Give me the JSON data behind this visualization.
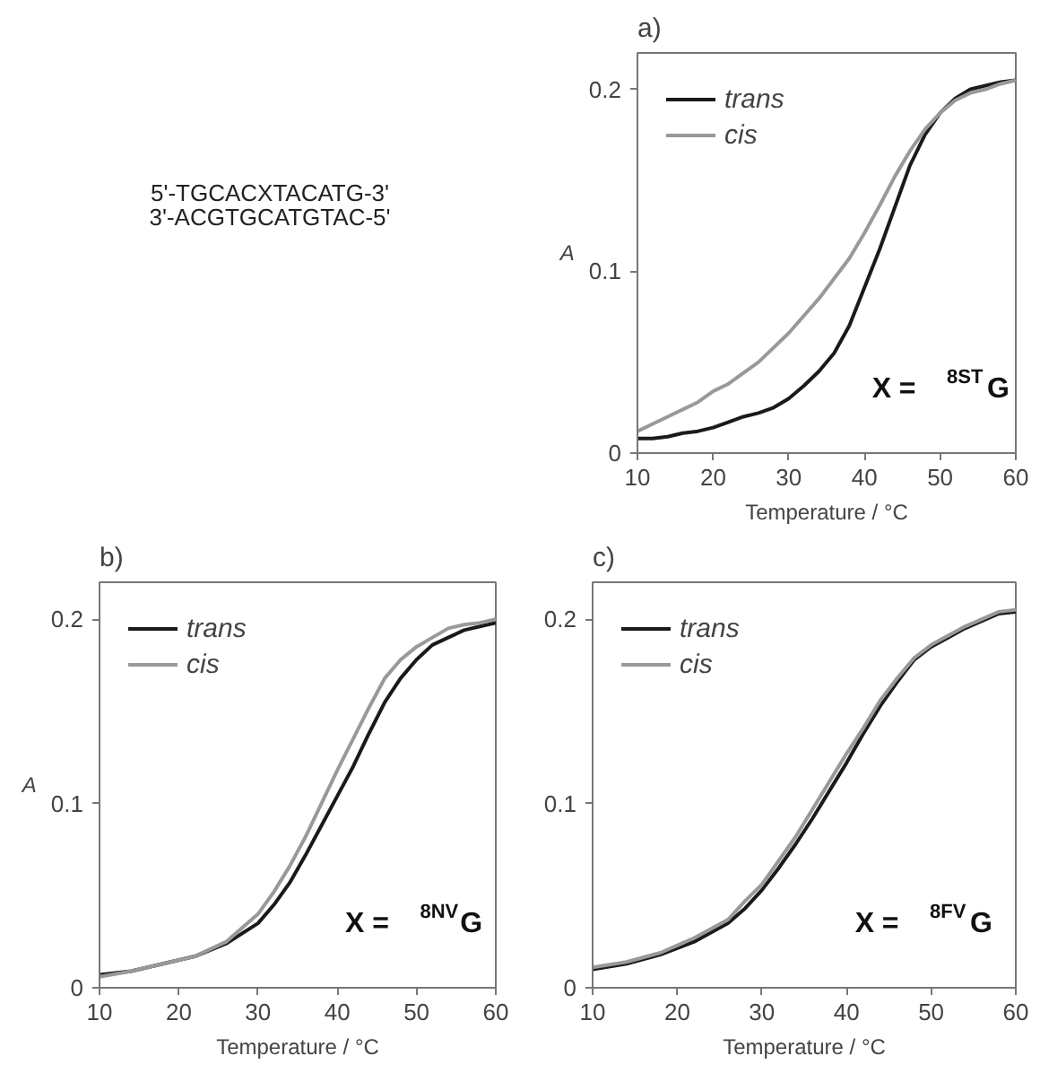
{
  "chart_data": [
    {
      "type": "other",
      "annotations": [
        "5'-TGCACXTACATG-3'",
        "3'-ACGTGCATGTAC-5'"
      ]
    },
    {
      "type": "line",
      "title": "a)",
      "xlabel": "Temperature / °C",
      "ylabel": "A",
      "annotations": [
        "X = $^{8ST}$G"
      ],
      "xlim": [
        10,
        60
      ],
      "ylim": [
        0,
        0.22
      ],
      "xticks": [
        10,
        20,
        30,
        40,
        50,
        60
      ],
      "yticks": [
        0,
        0.1,
        0.2
      ],
      "grid": false,
      "legend": "top left",
      "line_style": "solid",
      "series": [
        {
          "name": "trans",
          "color": "#1a1a1a",
          "x": [
            10,
            12,
            14,
            16,
            18,
            20,
            22,
            24,
            26,
            28,
            30,
            32,
            34,
            36,
            38,
            40,
            42,
            44,
            46,
            48,
            50,
            52,
            54,
            56,
            58,
            60
          ],
          "values": [
            0.008,
            0.008,
            0.009,
            0.011,
            0.012,
            0.014,
            0.017,
            0.02,
            0.022,
            0.025,
            0.03,
            0.037,
            0.045,
            0.055,
            0.07,
            0.091,
            0.112,
            0.135,
            0.158,
            0.175,
            0.187,
            0.195,
            0.2,
            0.202,
            0.204,
            0.205
          ]
        },
        {
          "name": "cis",
          "color": "#999999",
          "x": [
            10,
            14,
            18,
            20,
            22,
            26,
            30,
            34,
            38,
            40,
            42,
            44,
            46,
            48,
            50,
            52,
            54,
            56,
            58,
            60
          ],
          "values": [
            0.012,
            0.02,
            0.028,
            0.034,
            0.038,
            0.05,
            0.066,
            0.085,
            0.107,
            0.121,
            0.136,
            0.152,
            0.166,
            0.178,
            0.187,
            0.194,
            0.198,
            0.2,
            0.203,
            0.205
          ]
        }
      ]
    },
    {
      "type": "line",
      "title": "b)",
      "xlabel": "Temperature / °C",
      "ylabel": "A",
      "annotations": [
        "X = $^{8NV}$G"
      ],
      "xlim": [
        10,
        60
      ],
      "ylim": [
        0,
        0.22
      ],
      "xticks": [
        10,
        20,
        30,
        40,
        50,
        60
      ],
      "yticks": [
        0,
        0.1,
        0.2
      ],
      "grid": false,
      "legend": "top left",
      "line_style": "solid",
      "series": [
        {
          "name": "trans",
          "color": "#1a1a1a",
          "x": [
            10,
            14,
            18,
            22,
            26,
            30,
            32,
            34,
            36,
            38,
            40,
            42,
            44,
            46,
            48,
            50,
            52,
            54,
            56,
            58,
            60
          ],
          "values": [
            0.007,
            0.009,
            0.013,
            0.017,
            0.024,
            0.035,
            0.045,
            0.057,
            0.072,
            0.088,
            0.104,
            0.12,
            0.138,
            0.155,
            0.168,
            0.178,
            0.186,
            0.19,
            0.194,
            0.196,
            0.198
          ]
        },
        {
          "name": "cis",
          "color": "#999999",
          "x": [
            10,
            14,
            18,
            22,
            26,
            30,
            32,
            34,
            36,
            38,
            40,
            42,
            44,
            46,
            48,
            50,
            52,
            54,
            56,
            58,
            60
          ],
          "values": [
            0.006,
            0.009,
            0.013,
            0.017,
            0.025,
            0.04,
            0.052,
            0.066,
            0.082,
            0.1,
            0.118,
            0.135,
            0.152,
            0.168,
            0.178,
            0.185,
            0.19,
            0.195,
            0.197,
            0.198,
            0.2
          ]
        }
      ]
    },
    {
      "type": "line",
      "title": "c)",
      "xlabel": "Temperature / °C",
      "annotations": [
        "X = $^{8FV}$G"
      ],
      "xlim": [
        10,
        60
      ],
      "ylim": [
        0,
        0.22
      ],
      "xticks": [
        10,
        20,
        30,
        40,
        50,
        60
      ],
      "yticks": [
        0,
        0.1,
        0.2
      ],
      "grid": false,
      "legend": "top left",
      "line_style": "solid",
      "series": [
        {
          "name": "trans",
          "color": "#1a1a1a",
          "x": [
            10,
            14,
            18,
            22,
            26,
            28,
            30,
            32,
            34,
            36,
            38,
            40,
            42,
            44,
            46,
            48,
            50,
            52,
            54,
            56,
            58,
            60
          ],
          "values": [
            0.01,
            0.013,
            0.018,
            0.025,
            0.035,
            0.043,
            0.053,
            0.065,
            0.078,
            0.092,
            0.107,
            0.122,
            0.138,
            0.153,
            0.166,
            0.178,
            0.185,
            0.19,
            0.195,
            0.199,
            0.203,
            0.204
          ]
        },
        {
          "name": "cis",
          "color": "#999999",
          "x": [
            10,
            14,
            18,
            22,
            26,
            28,
            30,
            32,
            34,
            36,
            38,
            40,
            42,
            44,
            46,
            48,
            50,
            52,
            54,
            56,
            58,
            60
          ],
          "values": [
            0.011,
            0.014,
            0.019,
            0.027,
            0.037,
            0.047,
            0.056,
            0.069,
            0.082,
            0.097,
            0.112,
            0.127,
            0.141,
            0.156,
            0.168,
            0.179,
            0.186,
            0.191,
            0.196,
            0.2,
            0.204,
            0.205
          ]
        }
      ]
    }
  ]
}
